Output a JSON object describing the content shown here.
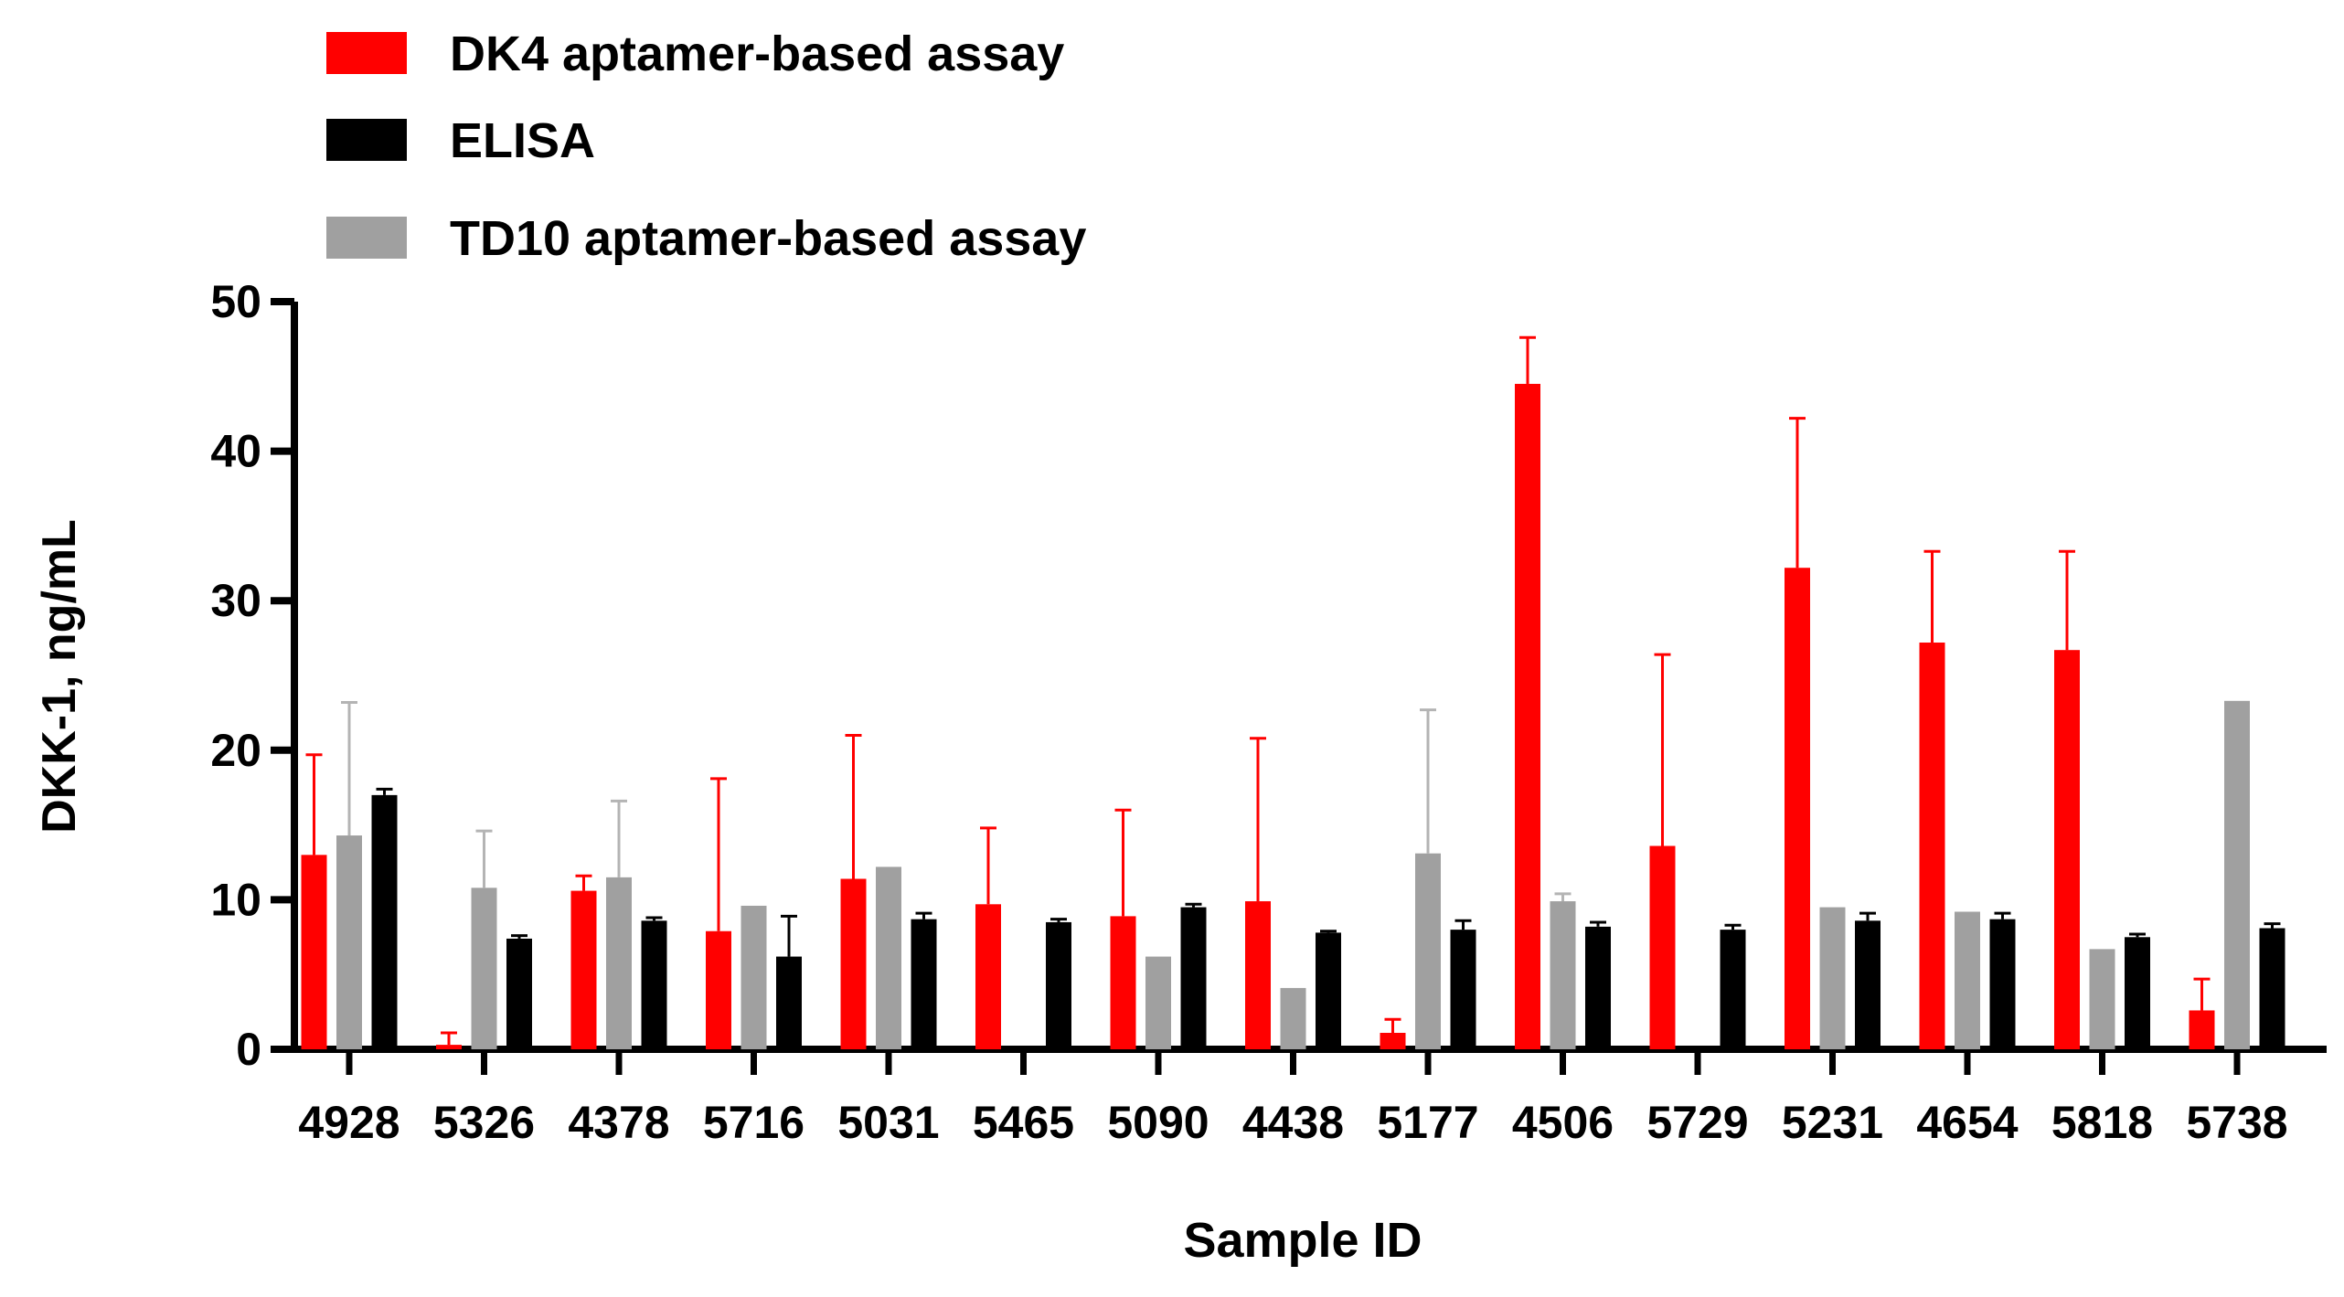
{
  "chart_data": {
    "type": "bar",
    "title": "",
    "xlabel": "Sample ID",
    "ylabel": "DKK-1, ng/mL",
    "ylim": [
      0,
      50
    ],
    "yticks": [
      0,
      10,
      20,
      30,
      40,
      50
    ],
    "grid": false,
    "legend_position": "top-left",
    "categories": [
      "4928",
      "5326",
      "4378",
      "5716",
      "5031",
      "5465",
      "5090",
      "4438",
      "5177",
      "4506",
      "5729",
      "5231",
      "4654",
      "5818",
      "5738"
    ],
    "series": [
      {
        "name": "DK4 aptamer-based assay",
        "color": "#ff0000",
        "error_color": "#ff0000",
        "values": [
          13.0,
          0.3,
          10.6,
          7.9,
          11.4,
          9.7,
          8.9,
          9.9,
          1.1,
          44.5,
          13.6,
          32.2,
          27.2,
          26.7,
          2.6
        ],
        "errors": [
          6.7,
          0.8,
          1.0,
          10.2,
          9.6,
          5.1,
          7.1,
          10.9,
          0.9,
          3.1,
          12.8,
          10.0,
          6.1,
          6.6,
          2.1
        ]
      },
      {
        "name": "ELISA",
        "color": "#000000",
        "error_color": "#000000",
        "values": [
          17.0,
          7.4,
          8.6,
          6.2,
          8.7,
          8.5,
          9.5,
          7.8,
          8.0,
          8.2,
          8.0,
          8.6,
          8.7,
          7.5,
          8.1
        ],
        "errors": [
          0.4,
          0.2,
          0.2,
          2.7,
          0.4,
          0.2,
          0.2,
          0.1,
          0.6,
          0.3,
          0.3,
          0.5,
          0.4,
          0.2,
          0.3
        ]
      },
      {
        "name": "TD10 aptamer-based assay",
        "color": "#a0a0a0",
        "error_color": "#b4b4b4",
        "values": [
          14.3,
          10.8,
          11.5,
          9.6,
          12.2,
          null,
          6.2,
          4.1,
          13.1,
          9.9,
          null,
          9.5,
          9.2,
          6.7,
          23.3
        ],
        "errors": [
          8.9,
          3.8,
          5.1,
          0.0,
          0.0,
          null,
          0.0,
          0.0,
          9.6,
          0.5,
          null,
          0.0,
          0.0,
          0.0,
          0.0
        ]
      }
    ]
  }
}
